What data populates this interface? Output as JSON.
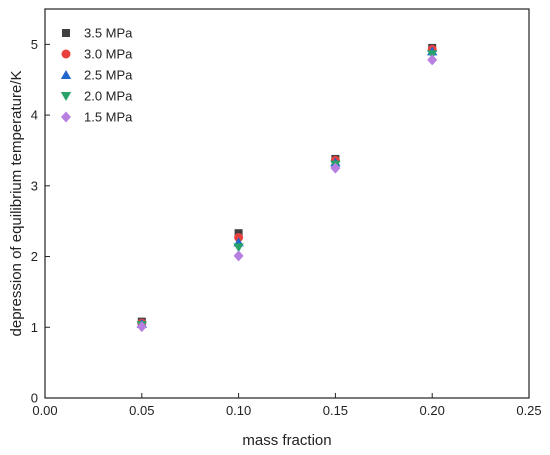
{
  "chart_data": {
    "type": "scatter",
    "title": "",
    "xlabel": "mass fraction",
    "ylabel": "depression of equilibrium temperature/K",
    "xlim": [
      0.0,
      0.25
    ],
    "ylim": [
      0,
      5.5
    ],
    "xticks": [
      "0.00",
      "0.05",
      "0.10",
      "0.15",
      "0.20",
      "0.25"
    ],
    "yticks": [
      "0",
      "1",
      "2",
      "3",
      "4",
      "5"
    ],
    "xtick_values": [
      0.0,
      0.05,
      0.1,
      0.15,
      0.2,
      0.25
    ],
    "ytick_values": [
      0,
      1,
      2,
      3,
      4,
      5
    ],
    "grid": false,
    "legend_position": "top-left",
    "x": [
      0.05,
      0.1,
      0.15,
      0.2
    ],
    "series": [
      {
        "name": "3.5 MPa",
        "marker": "square",
        "color": "#404040",
        "values": [
          1.08,
          2.33,
          3.38,
          4.95
        ]
      },
      {
        "name": "3.0 MPa",
        "marker": "circle",
        "color": "#e8403f",
        "values": [
          1.06,
          2.27,
          3.36,
          4.93
        ]
      },
      {
        "name": "2.5 MPa",
        "marker": "triangle-up",
        "color": "#2266cc",
        "values": [
          1.05,
          2.2,
          3.33,
          4.9
        ]
      },
      {
        "name": "2.0 MPa",
        "marker": "triangle-down",
        "color": "#2aa36b",
        "values": [
          1.03,
          2.13,
          3.3,
          4.86
        ]
      },
      {
        "name": "1.5 MPa",
        "marker": "diamond",
        "color": "#b77fe0",
        "values": [
          1.01,
          2.01,
          3.25,
          4.78
        ]
      }
    ]
  }
}
